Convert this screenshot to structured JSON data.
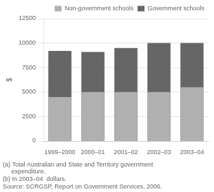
{
  "chart_data": {
    "type": "bar",
    "categories": [
      "1999–2000",
      "2000–01",
      "2001–02",
      "2002–03",
      "2003–04"
    ],
    "series": [
      {
        "name": "Government schools",
        "color": "#666666",
        "values": [
          9200,
          9100,
          9500,
          10000,
          10000
        ]
      },
      {
        "name": "Non-government schools",
        "color": "#b0b0b0",
        "values": [
          4500,
          5000,
          5000,
          5000,
          5500
        ]
      }
    ],
    "y_label": "$",
    "ylim": [
      0,
      12500
    ],
    "yticks": [
      0,
      2500,
      5000,
      7500,
      10000,
      12500
    ],
    "grid": true,
    "legend": "upper right",
    "annotations": [
      "(a) Total Australian and State and Territory government",
      "     expenditure.",
      "(b) In 2003–04  dollars.",
      "Source: SCRGSP, Report on Government Services, 2006."
    ]
  }
}
